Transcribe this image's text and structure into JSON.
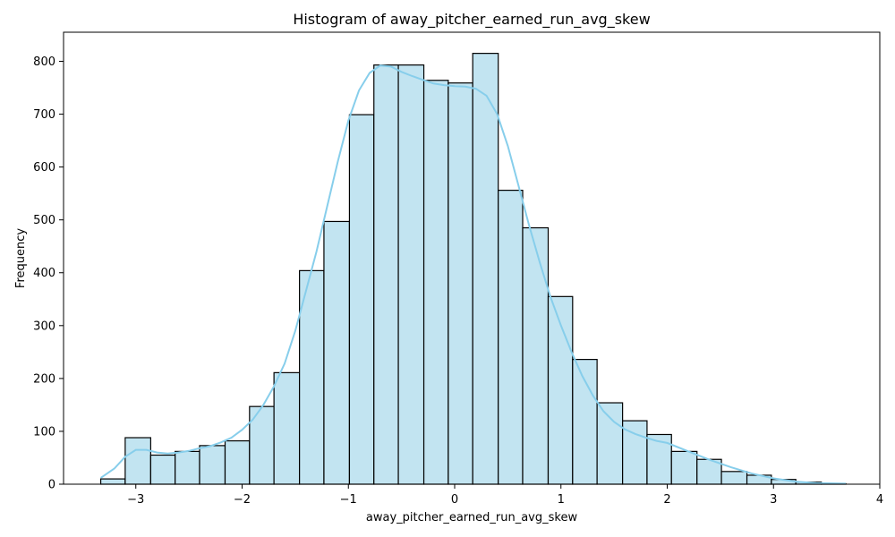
{
  "chart_data": {
    "type": "bar",
    "subtype": "histogram",
    "title": "Histogram of away_pitcher_earned_run_avg_skew",
    "xlabel": "away_pitcher_earned_run_avg_skew",
    "ylabel": "Frequency",
    "xlim": [
      -3.68,
      4.0
    ],
    "ylim": [
      0,
      855
    ],
    "xticks": [
      -3,
      -2,
      -1,
      0,
      1,
      2,
      3,
      4
    ],
    "xtick_labels": [
      "−3",
      "−2",
      "−1",
      "0",
      "1",
      "2",
      "3",
      "4"
    ],
    "yticks": [
      0,
      100,
      200,
      300,
      400,
      500,
      600,
      700,
      800
    ],
    "bin_edges": [
      -3.33,
      -3.1,
      -2.86,
      -2.63,
      -2.4,
      -2.16,
      -1.93,
      -1.7,
      -1.46,
      -1.23,
      -0.99,
      -0.76,
      -0.53,
      -0.29,
      -0.06,
      0.17,
      0.41,
      0.64,
      0.88,
      1.11,
      1.34,
      1.58,
      1.81,
      2.04,
      2.28,
      2.51,
      2.75,
      2.98,
      3.21,
      3.45,
      3.68
    ],
    "counts": [
      10,
      88,
      55,
      62,
      73,
      82,
      147,
      211,
      404,
      497,
      699,
      793,
      793,
      764,
      759,
      815,
      556,
      485,
      355,
      236,
      154,
      120,
      94,
      62,
      47,
      24,
      17,
      9,
      4,
      1
    ],
    "kde": {
      "x": [
        -3.33,
        -3.2,
        -3.1,
        -3.0,
        -2.9,
        -2.8,
        -2.7,
        -2.6,
        -2.5,
        -2.4,
        -2.3,
        -2.2,
        -2.1,
        -2.0,
        -1.9,
        -1.8,
        -1.7,
        -1.6,
        -1.5,
        -1.4,
        -1.3,
        -1.2,
        -1.1,
        -1.0,
        -0.9,
        -0.8,
        -0.7,
        -0.6,
        -0.5,
        -0.4,
        -0.3,
        -0.2,
        -0.1,
        0.0,
        0.1,
        0.2,
        0.3,
        0.4,
        0.5,
        0.6,
        0.7,
        0.8,
        0.9,
        1.0,
        1.1,
        1.2,
        1.3,
        1.4,
        1.5,
        1.6,
        1.7,
        1.8,
        1.9,
        2.0,
        2.2,
        2.4,
        2.6,
        2.8,
        3.0,
        3.2,
        3.4,
        3.68
      ],
      "y": [
        12,
        30,
        52,
        65,
        65,
        60,
        58,
        60,
        63,
        68,
        72,
        79,
        88,
        103,
        122,
        150,
        185,
        228,
        290,
        365,
        440,
        525,
        610,
        688,
        745,
        778,
        792,
        790,
        780,
        772,
        765,
        758,
        755,
        753,
        752,
        748,
        735,
        700,
        640,
        565,
        490,
        420,
        355,
        300,
        250,
        205,
        168,
        138,
        118,
        104,
        95,
        88,
        82,
        78,
        62,
        46,
        32,
        20,
        11,
        5,
        2,
        1
      ]
    },
    "colors": {
      "bar_fill": "#c2e4f1",
      "bar_edge": "#000000",
      "kde_line": "#87ceeb"
    },
    "grid": false,
    "legend": "none"
  }
}
